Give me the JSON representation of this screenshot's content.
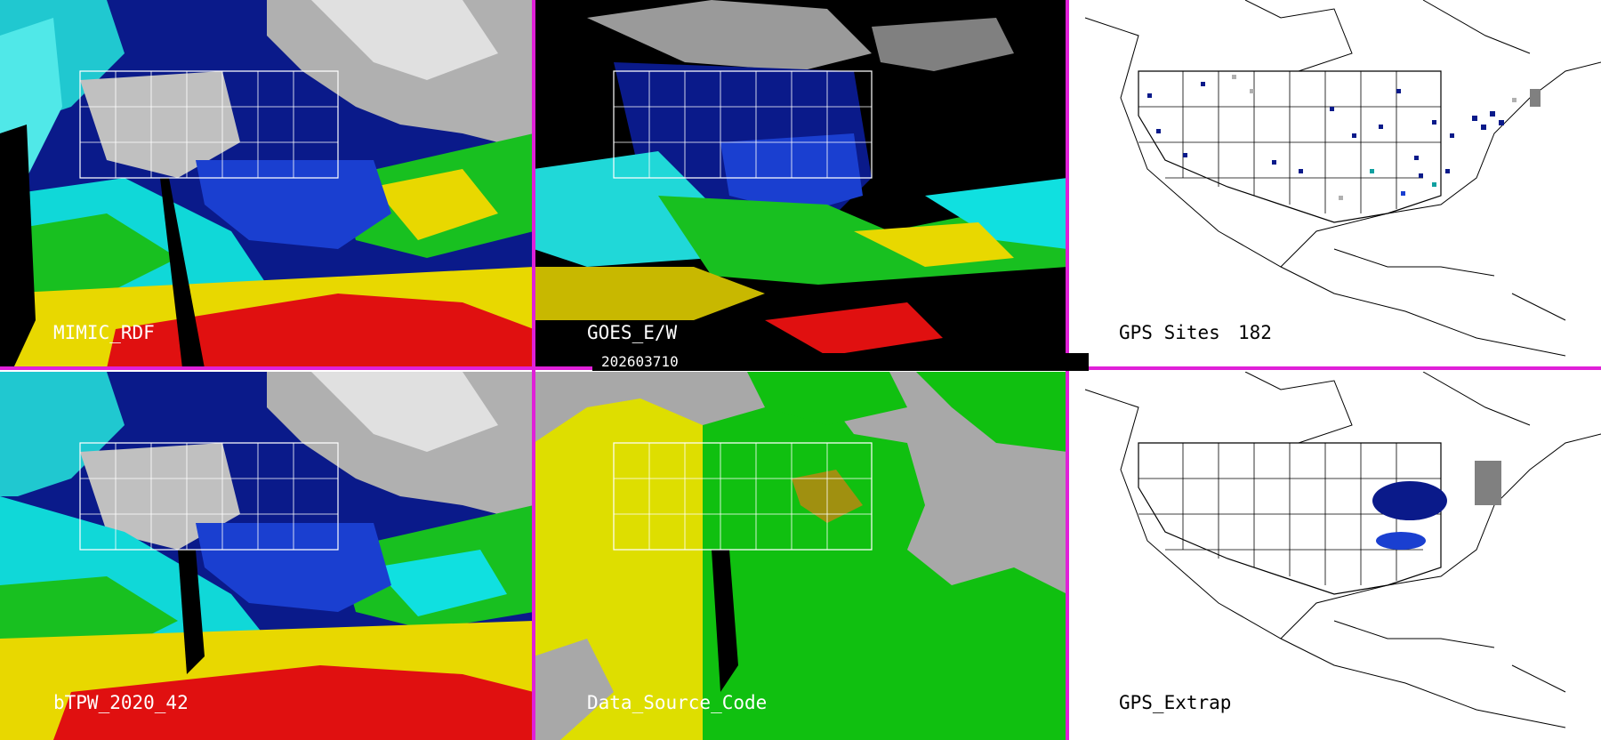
{
  "panels": [
    {
      "id": "mimic",
      "label": "MIMIC_RDF"
    },
    {
      "id": "goes",
      "label": "GOES_E/W"
    },
    {
      "id": "gps_sites",
      "label": "GPS Sites",
      "count": "182"
    },
    {
      "id": "btpw",
      "label": "bTPW_2020_42"
    },
    {
      "id": "dsc",
      "label": "Data_Source_Code"
    },
    {
      "id": "gps_extrap",
      "label": "GPS_Extrap"
    }
  ],
  "timestamp": "202603710",
  "colors": {
    "divider": "#e020d8",
    "tpw_gray": "#b8b8b8",
    "tpw_navy": "#0a1a8a",
    "tpw_blue": "#1a3fd0",
    "tpw_cyan": "#10e0e0",
    "tpw_green": "#18c020",
    "tpw_yellow": "#e8d800",
    "tpw_red": "#e01010",
    "dsc_gray": "#a8a8a8",
    "dsc_yellow": "#dede00",
    "dsc_green": "#10c010",
    "dsc_olive": "#a09010"
  }
}
